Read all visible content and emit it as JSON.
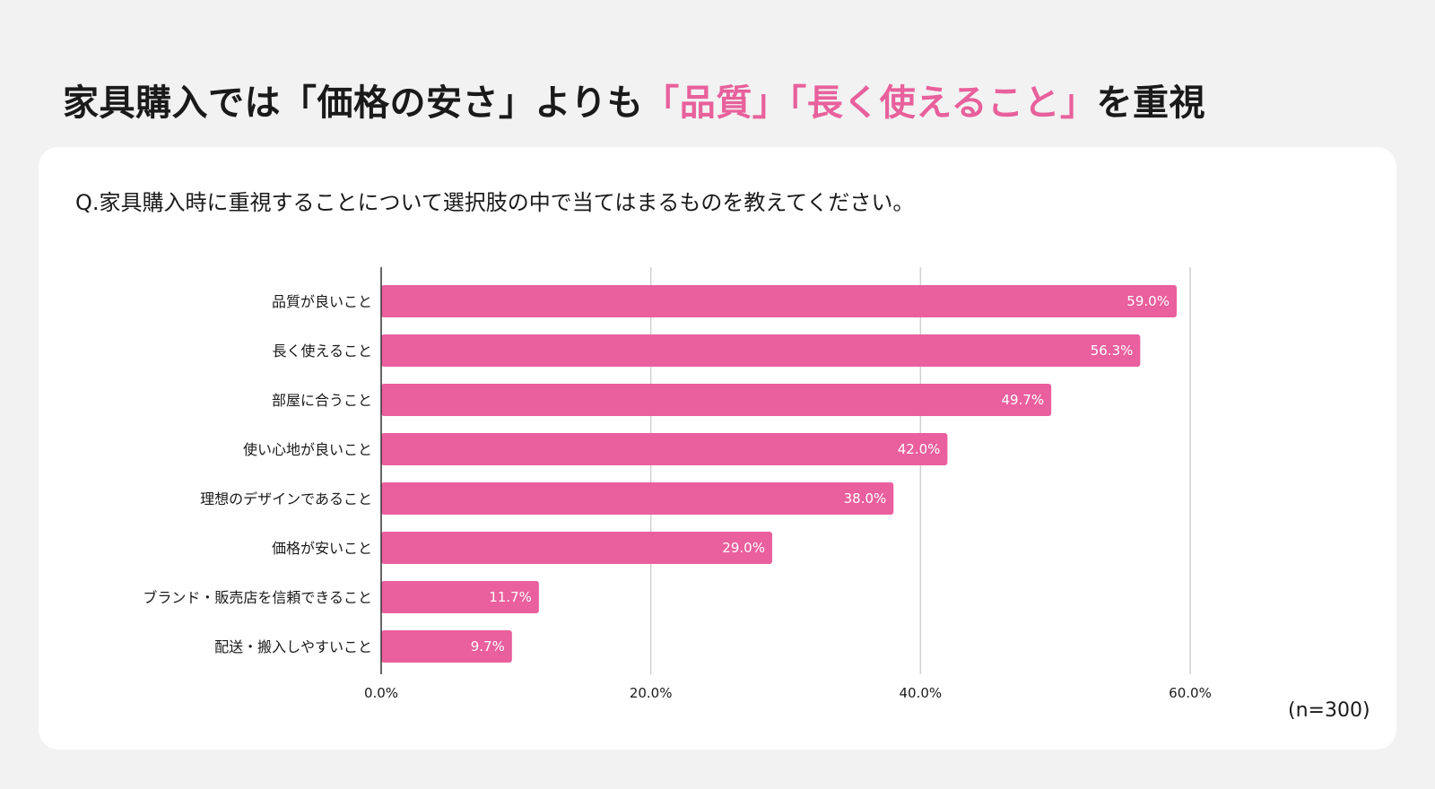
{
  "headline": {
    "part1": "家具購入では「価格の安さ」よりも",
    "accent1": "「品質」",
    "accent2": "「長く使えること」",
    "part2": "を重視"
  },
  "question": "Q.家具購入時に重視することについて選択肢の中で当てはまるものを教えてください。",
  "sample_note": "(n=300)",
  "colors": {
    "bar": "#ea5f9e",
    "accent": "#e8609c",
    "grid": "#d0d0d0",
    "axis": "#333333"
  },
  "chart_data": {
    "type": "bar",
    "orientation": "horizontal",
    "categories": [
      "品質が良いこと",
      "長く使えること",
      "部屋に合うこと",
      "使い心地が良いこと",
      "理想のデザインであること",
      "価格が安いこと",
      "ブランド・販売店を信頼できること",
      "配送・搬入しやすいこと"
    ],
    "values": [
      59.0,
      56.3,
      49.7,
      42.0,
      38.0,
      29.0,
      11.7,
      9.7
    ],
    "value_labels": [
      "59.0%",
      "56.3%",
      "49.7%",
      "42.0%",
      "38.0%",
      "29.0%",
      "11.7%",
      "9.7%"
    ],
    "xlim": [
      0,
      60
    ],
    "xticks": [
      0,
      20,
      40,
      60
    ],
    "xtick_labels": [
      "0.0%",
      "20.0%",
      "40.0%",
      "60.0%"
    ],
    "grid": true,
    "legend": "none"
  }
}
